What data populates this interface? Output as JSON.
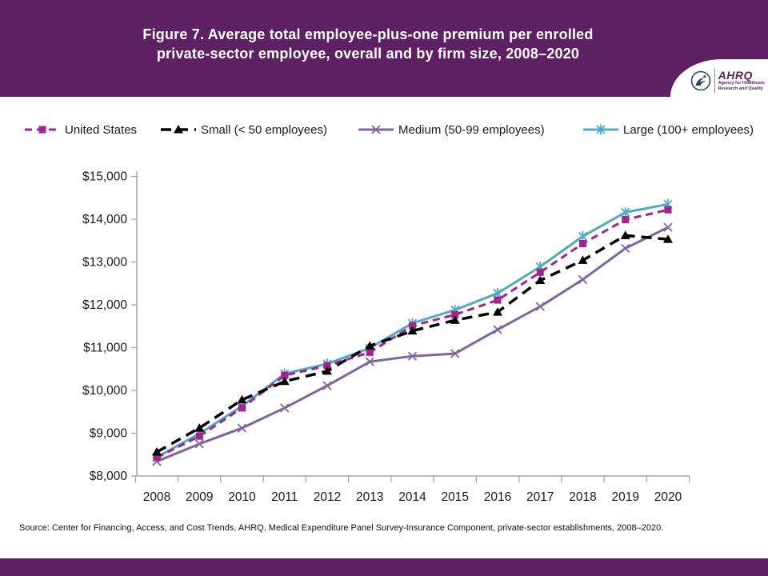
{
  "header": {
    "title_line1": "Figure 7. Average total employee-plus-one premium per enrolled",
    "title_line2": "private-sector employee, overall and by firm size, 2008–2020",
    "background_color": "#5c2063"
  },
  "logo": {
    "org": "AHRQ",
    "tagline_line1": "Agency for Healthcare",
    "tagline_line2": "Research and Quality",
    "hhs_eagle_icon": "hhs-eagle",
    "accent_color": "#5c2063"
  },
  "footer": {
    "source": "Source: Center for Financing, Access, and Cost Trends, AHRQ, Medical Expenditure Panel Survey-Insurance Component, private-sector establishments, 2008–2020."
  },
  "chart_data": {
    "type": "line",
    "title": "Figure 7. Average total employee-plus-one premium per enrolled private-sector employee, overall and by firm size, 2008–2020",
    "xlabel": "",
    "ylabel": "",
    "categories": [
      "2008",
      "2009",
      "2010",
      "2011",
      "2012",
      "2013",
      "2014",
      "2015",
      "2016",
      "2017",
      "2018",
      "2019",
      "2020"
    ],
    "ylim": [
      8000,
      15000
    ],
    "ytick_step": 1000,
    "ytick_prefix": "$",
    "grid": false,
    "legend_position": "top",
    "axis_color": "#a6a6a6",
    "tick_label_color": "#1a1a1a",
    "series": [
      {
        "name": "United States",
        "color": "#a6228f",
        "marker": "square",
        "dash": "9 6",
        "width": 3,
        "values": [
          8430,
          8930,
          9590,
          10350,
          10580,
          10890,
          11510,
          11770,
          12110,
          12760,
          13430,
          13990,
          14220
        ]
      },
      {
        "name": "Small (< 50 employees)",
        "color": "#000000",
        "marker": "triangle",
        "dash": "13 8",
        "width": 3.5,
        "values": [
          8560,
          9120,
          9780,
          10210,
          10450,
          11040,
          11390,
          11640,
          11830,
          12570,
          13040,
          13620,
          13530
        ]
      },
      {
        "name": "Medium (50-99 employees)",
        "color": "#8064a2",
        "marker": "x",
        "dash": "",
        "width": 3,
        "values": [
          8340,
          8750,
          9120,
          9590,
          10110,
          10670,
          10800,
          10860,
          11420,
          11960,
          12590,
          13320,
          13810
        ]
      },
      {
        "name": "Large (100+ employees)",
        "color": "#4bacc6",
        "marker": "star",
        "dash": "",
        "width": 3,
        "values": [
          8440,
          8990,
          9630,
          10390,
          10620,
          10990,
          11570,
          11880,
          12270,
          12890,
          13600,
          14160,
          14350
        ]
      }
    ]
  }
}
